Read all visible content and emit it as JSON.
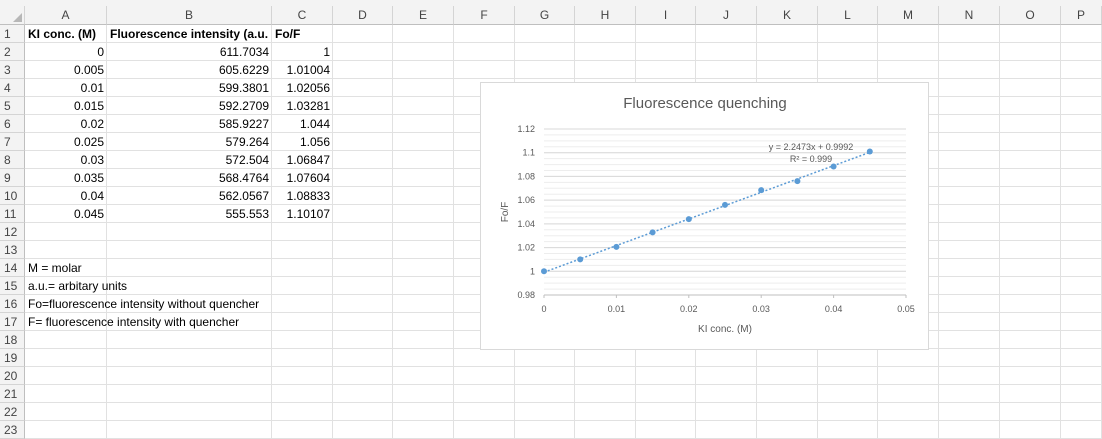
{
  "columns": [
    "A",
    "B",
    "C",
    "D",
    "E",
    "F",
    "G",
    "H",
    "I",
    "J",
    "K",
    "L",
    "M",
    "N",
    "O",
    "P"
  ],
  "rows": [
    "1",
    "2",
    "3",
    "4",
    "5",
    "6",
    "7",
    "8",
    "9",
    "10",
    "11",
    "12",
    "13",
    "14",
    "15",
    "16",
    "17",
    "18",
    "19",
    "20",
    "21",
    "22",
    "23"
  ],
  "table": {
    "headers": [
      "KI conc. (M)",
      "Fluorescence intensity (a.u.",
      "Fo/F"
    ],
    "data": [
      [
        "0",
        "611.7034",
        "1"
      ],
      [
        "0.005",
        "605.6229",
        "1.01004"
      ],
      [
        "0.01",
        "599.3801",
        "1.02056"
      ],
      [
        "0.015",
        "592.2709",
        "1.03281"
      ],
      [
        "0.02",
        "585.9227",
        "1.044"
      ],
      [
        "0.025",
        "579.264",
        "1.056"
      ],
      [
        "0.03",
        "572.504",
        "1.06847"
      ],
      [
        "0.035",
        "568.4764",
        "1.07604"
      ],
      [
        "0.04",
        "562.0567",
        "1.08833"
      ],
      [
        "0.045",
        "555.553",
        "1.10107"
      ]
    ]
  },
  "notes": [
    "M = molar",
    "a.u.= arbitary units",
    "Fo=fluorescence intensity without quencher",
    "F= fluorescence intensity with quencher"
  ],
  "chart_data": {
    "type": "scatter",
    "title": "Fluorescence quenching",
    "xlabel": "KI conc. (M)",
    "ylabel": "Fo/F",
    "xlim": [
      0,
      0.05
    ],
    "ylim": [
      0.98,
      1.12
    ],
    "x_ticks": [
      "0",
      "0.01",
      "0.02",
      "0.03",
      "0.04",
      "0.05"
    ],
    "y_ticks": [
      "0.98",
      "1",
      "1.02",
      "1.04",
      "1.06",
      "1.08",
      "1.1",
      "1.12"
    ],
    "x": [
      0,
      0.005,
      0.01,
      0.015,
      0.02,
      0.025,
      0.03,
      0.035,
      0.04,
      0.045
    ],
    "y": [
      1,
      1.01004,
      1.02056,
      1.03281,
      1.044,
      1.056,
      1.06847,
      1.07604,
      1.08833,
      1.10107
    ],
    "trendline": {
      "slope": 2.2473,
      "intercept": 0.9992,
      "equation": "y = 2.2473x + 0.9992",
      "r2": "R² = 0.999"
    },
    "grid": true,
    "marker_color": "#5b9bd5",
    "legend": "none"
  }
}
